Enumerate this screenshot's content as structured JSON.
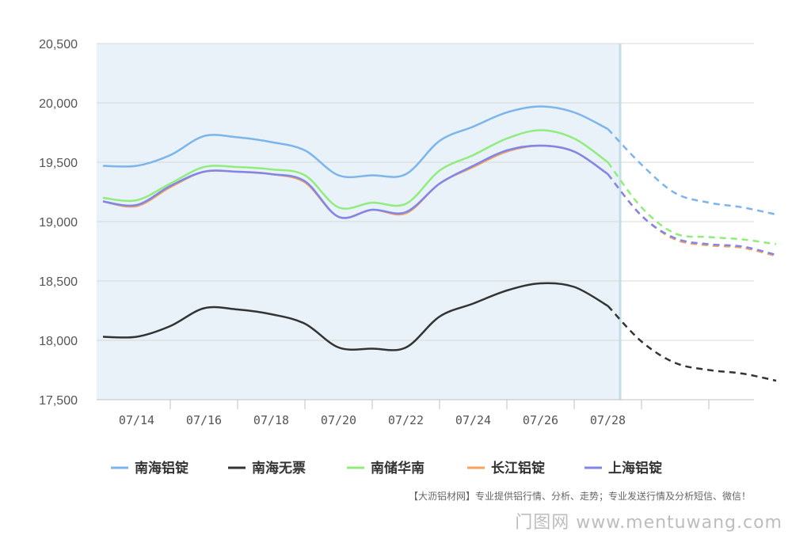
{
  "chart_data": {
    "type": "line",
    "x": [
      "07/13",
      "07/14",
      "07/15",
      "07/16",
      "07/17",
      "07/18",
      "07/19",
      "07/20",
      "07/21",
      "07/22",
      "07/23",
      "07/24",
      "07/25",
      "07/26",
      "07/27",
      "07/28",
      "07/29",
      "07/30",
      "07/31",
      "08/01",
      "08/02"
    ],
    "x_tick_labels": [
      "07/14",
      "07/16",
      "07/18",
      "07/20",
      "07/22",
      "07/24",
      "07/26",
      "07/28"
    ],
    "y_tick_labels": [
      "17,500",
      "18,000",
      "18,500",
      "19,000",
      "19,500",
      "20,000",
      "20,500"
    ],
    "ylim": [
      17500,
      20500
    ],
    "grid": true,
    "legend_position": "bottom",
    "forecast_start": "07/28",
    "highlight_region": [
      "07/13",
      "07/29"
    ],
    "series": [
      {
        "name": "南海铝锭",
        "color": "#7cb5ec",
        "values": [
          19470,
          19470,
          19560,
          19720,
          19710,
          19670,
          19600,
          19390,
          19390,
          19400,
          19680,
          19800,
          19920,
          19970,
          19920,
          19780,
          19480,
          19240,
          19160,
          19120,
          19060
        ]
      },
      {
        "name": "南海无票",
        "color": "#333333",
        "values": [
          18030,
          18030,
          18120,
          18270,
          18260,
          18220,
          18140,
          17940,
          17930,
          17940,
          18200,
          18310,
          18420,
          18480,
          18450,
          18290,
          17990,
          17810,
          17750,
          17720,
          17660
        ]
      },
      {
        "name": "南储华南",
        "color": "#90ed7d",
        "values": [
          19200,
          19180,
          19320,
          19460,
          19460,
          19440,
          19390,
          19120,
          19160,
          19150,
          19430,
          19560,
          19700,
          19770,
          19700,
          19500,
          19120,
          18900,
          18870,
          18850,
          18810
        ]
      },
      {
        "name": "长江铝锭",
        "color": "#f7a35c",
        "values": [
          19170,
          19130,
          19290,
          19420,
          19420,
          19400,
          19330,
          19040,
          19100,
          19070,
          19320,
          19460,
          19590,
          19640,
          19590,
          19400,
          19050,
          18850,
          18800,
          18780,
          18710
        ]
      },
      {
        "name": "上海铝锭",
        "color": "#8085e9",
        "values": [
          19170,
          19140,
          19300,
          19420,
          19420,
          19400,
          19340,
          19040,
          19100,
          19080,
          19320,
          19470,
          19600,
          19640,
          19590,
          19400,
          19050,
          18860,
          18810,
          18790,
          18720
        ]
      }
    ]
  },
  "footer_text": "【大沥铝材网】专业提供铝行情、分析、走势；专业发送行情及分析短信、微信！",
  "watermark_text": "门图网 www.mentuwang.com"
}
